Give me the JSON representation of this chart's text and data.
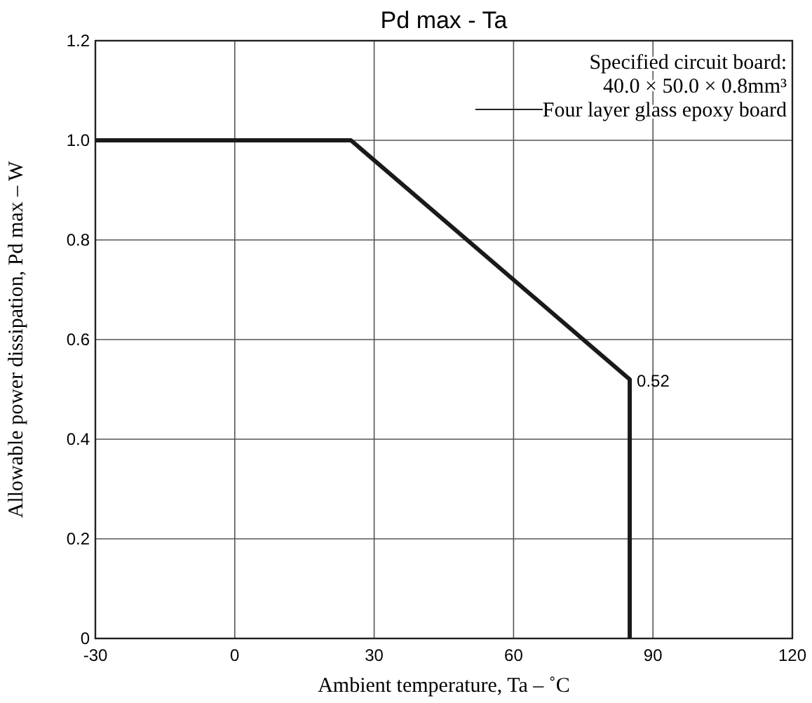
{
  "chart_data": {
    "type": "line",
    "title": "Pd max  -  Ta",
    "xlabel": "Ambient temperature, Ta –  ˚C",
    "ylabel": "Allowable power dissipation, Pd max – W",
    "x": [
      -30,
      25,
      85,
      85
    ],
    "series": [
      {
        "color": "#1a1a1a",
        "values": [
          1.0,
          1.0,
          0.52,
          0
        ]
      }
    ],
    "xlim": [
      -30,
      120
    ],
    "xticks": [
      -30,
      0,
      30,
      60,
      90,
      120
    ],
    "ylim": [
      0,
      1.2
    ],
    "yticks": [
      0,
      0.2,
      0.4,
      0.6,
      0.8,
      {
        "value": 1,
        "label": "1.0"
      },
      1.2
    ],
    "grid": true,
    "marker": "none",
    "line_style": "solid",
    "annotations": [
      "Specified circuit board:\n40.0 × 50.0 × 0.8mm³\nFour layer glass epoxy board",
      {
        "text": "0.52",
        "x": 85,
        "y": 0.52
      }
    ]
  }
}
